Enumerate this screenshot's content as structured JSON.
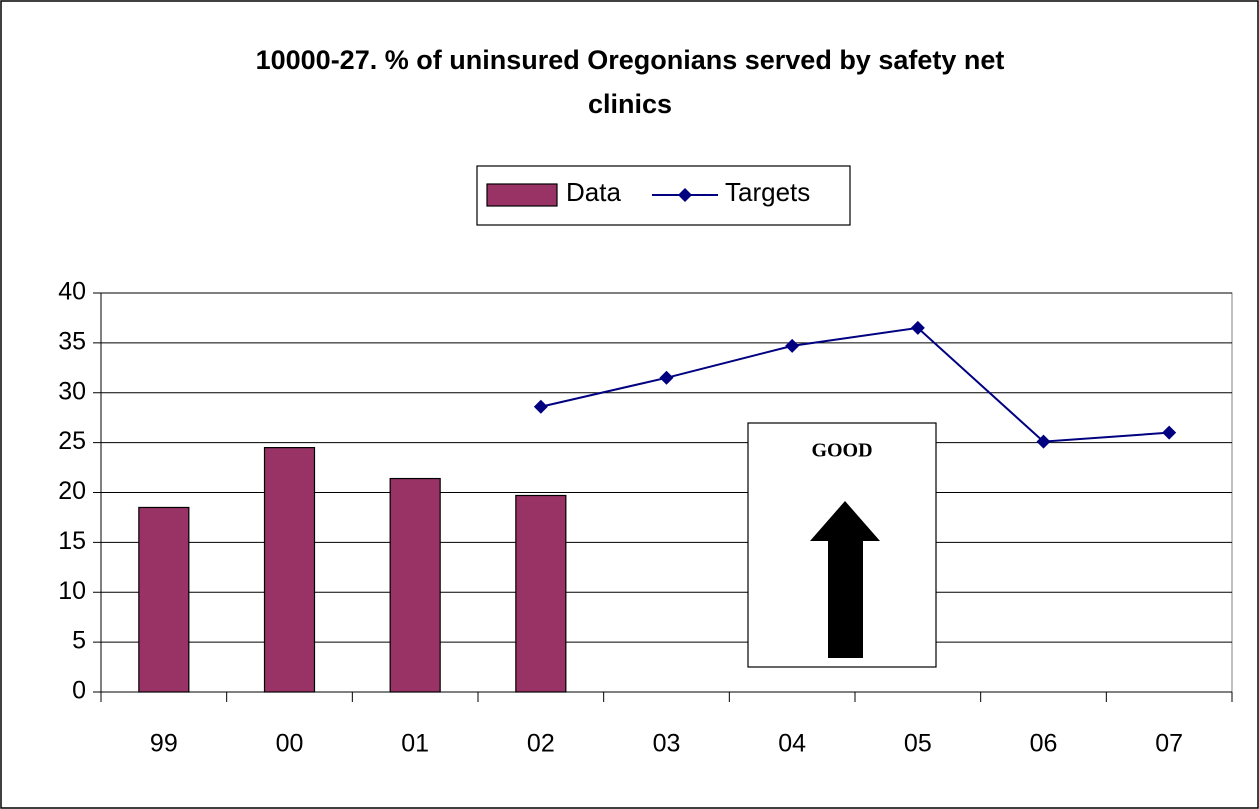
{
  "chart_data": {
    "type": "bar",
    "title": "10000-27. % of uninsured Oregonians served by safety net clinics",
    "categories": [
      "99",
      "00",
      "01",
      "02",
      "03",
      "04",
      "05",
      "06",
      "07"
    ],
    "series": [
      {
        "name": "Data",
        "type": "bar",
        "color": "#993366",
        "values": [
          18.5,
          24.5,
          21.4,
          19.7,
          null,
          null,
          null,
          null,
          null
        ]
      },
      {
        "name": "Targets",
        "type": "line",
        "color": "#000080",
        "values": [
          null,
          null,
          null,
          28.6,
          31.5,
          34.7,
          36.5,
          25.1,
          26
        ]
      }
    ],
    "ylim": [
      0,
      40
    ],
    "yticks": [
      0,
      5,
      10,
      15,
      20,
      25,
      30,
      35,
      40
    ],
    "grid": true,
    "annotation": "GOOD"
  }
}
